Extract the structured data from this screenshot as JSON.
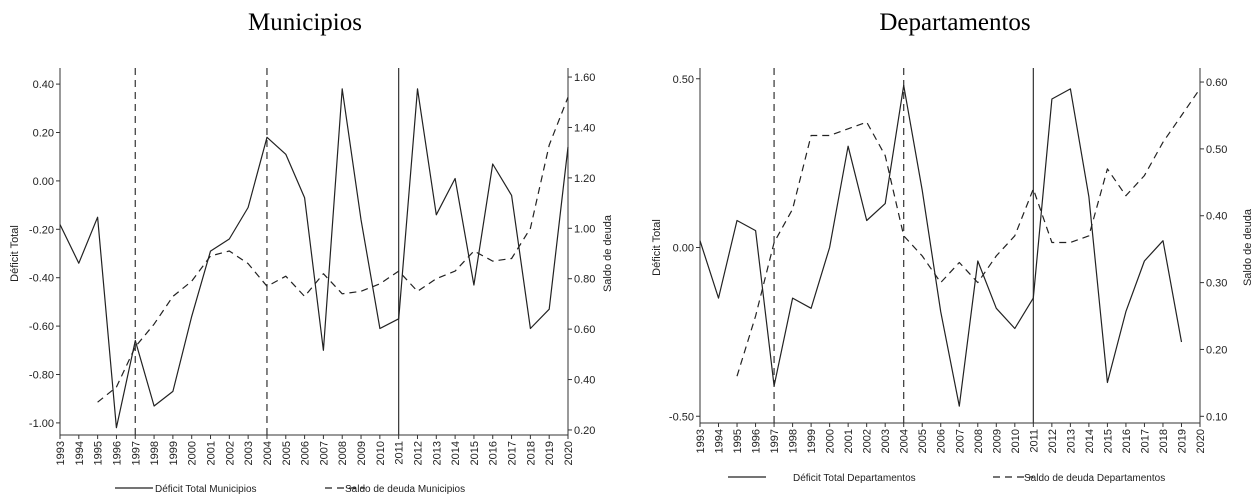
{
  "panels": {
    "left_title": "Municipios",
    "right_title": "Departamentos"
  },
  "chart_data": [
    {
      "type": "line",
      "title": "Municipios",
      "xlabel": "",
      "ylabel": "Déficit Total",
      "y2label": "Saldo de deuda",
      "x": [
        1993,
        1994,
        1995,
        1996,
        1997,
        1998,
        1999,
        2000,
        2001,
        2002,
        2003,
        2004,
        2005,
        2006,
        2007,
        2008,
        2009,
        2010,
        2011,
        2012,
        2013,
        2014,
        2015,
        2016,
        2017,
        2018,
        2019,
        2020
      ],
      "ylim": [
        -1.05,
        0.45
      ],
      "y2lim": [
        0.18,
        1.62
      ],
      "yticks": [
        0.4,
        0.2,
        0.0,
        -0.2,
        -0.4,
        -0.6,
        -0.8,
        -1.0
      ],
      "ytick_labels": [
        "0.40",
        "0.20",
        "0.00",
        "-0.20",
        "-0.40",
        "-0.60",
        "-0.80",
        "-1.00"
      ],
      "y2ticks": [
        1.6,
        1.4,
        1.2,
        1.0,
        0.8,
        0.6,
        0.4,
        0.2
      ],
      "y2tick_labels": [
        "1.60",
        "1.40",
        "1.20",
        "1.00",
        "0.80",
        "0.60",
        "0.40",
        "0.20"
      ],
      "vlines": [
        {
          "x": 1997,
          "style": "dashed"
        },
        {
          "x": 2004,
          "style": "dashed"
        },
        {
          "x": 2011,
          "style": "solid"
        }
      ],
      "series": [
        {
          "name": "Déficit Total Municipios",
          "axis": "left",
          "style": "solid",
          "values": [
            -0.18,
            -0.34,
            -0.15,
            -1.02,
            -0.66,
            -0.93,
            -0.87,
            -0.56,
            -0.29,
            -0.24,
            -0.11,
            0.18,
            0.11,
            -0.07,
            -0.7,
            0.38,
            -0.16,
            -0.61,
            -0.57,
            0.38,
            -0.14,
            0.01,
            -0.43,
            0.07,
            -0.06,
            -0.61,
            -0.53,
            0.14
          ]
        },
        {
          "name": "Saldo de deuda Municipios",
          "axis": "right",
          "style": "dashed",
          "values": [
            null,
            null,
            0.31,
            0.37,
            0.53,
            0.62,
            0.73,
            0.79,
            0.89,
            0.91,
            0.86,
            0.77,
            0.81,
            0.73,
            0.82,
            0.74,
            0.75,
            0.78,
            0.83,
            0.75,
            0.8,
            0.83,
            0.91,
            0.87,
            0.88,
            1.0,
            1.33,
            1.52
          ]
        }
      ],
      "legend": {
        "position": "bottom"
      }
    },
    {
      "type": "line",
      "title": "Departamentos",
      "xlabel": "",
      "ylabel": "Déficit Total",
      "y2label": "Saldo de deuda",
      "x": [
        1993,
        1994,
        1995,
        1996,
        1997,
        1998,
        1999,
        2000,
        2001,
        2002,
        2003,
        2004,
        2005,
        2006,
        2007,
        2008,
        2009,
        2010,
        2011,
        2012,
        2013,
        2014,
        2015,
        2016,
        2017,
        2018,
        2019,
        2020
      ],
      "ylim": [
        -0.52,
        0.52
      ],
      "y2lim": [
        0.09,
        0.615
      ],
      "yticks": [
        0.5,
        0.0,
        -0.5
      ],
      "ytick_labels": [
        "0.50",
        "0.00",
        "-0.50"
      ],
      "y2ticks": [
        0.6,
        0.5,
        0.4,
        0.3,
        0.2,
        0.1
      ],
      "y2tick_labels": [
        "0.60",
        "0.50",
        "0.40",
        "0.30",
        "0.20",
        "0.10"
      ],
      "vlines": [
        {
          "x": 1997,
          "style": "dashed"
        },
        {
          "x": 2004,
          "style": "dashed"
        },
        {
          "x": 2011,
          "style": "solid"
        }
      ],
      "series": [
        {
          "name": "Déficit Total Departamentos",
          "axis": "left",
          "style": "solid",
          "values": [
            0.02,
            -0.15,
            0.08,
            0.05,
            -0.41,
            -0.15,
            -0.18,
            0.0,
            0.3,
            0.08,
            0.13,
            0.48,
            0.17,
            -0.19,
            -0.47,
            -0.04,
            -0.18,
            -0.24,
            -0.15,
            0.44,
            0.47,
            0.15,
            -0.4,
            -0.19,
            -0.04,
            0.02,
            -0.28,
            null
          ]
        },
        {
          "name": "Saldo de deuda Departamentos",
          "axis": "right",
          "style": "dashed",
          "values": [
            null,
            null,
            0.16,
            0.25,
            0.36,
            0.41,
            0.52,
            0.52,
            0.53,
            0.54,
            0.49,
            0.37,
            0.34,
            0.3,
            0.33,
            0.3,
            0.34,
            0.37,
            0.44,
            0.36,
            0.36,
            0.37,
            0.47,
            0.43,
            0.46,
            0.51,
            0.55,
            0.59
          ]
        }
      ],
      "legend": {
        "position": "bottom"
      }
    }
  ]
}
